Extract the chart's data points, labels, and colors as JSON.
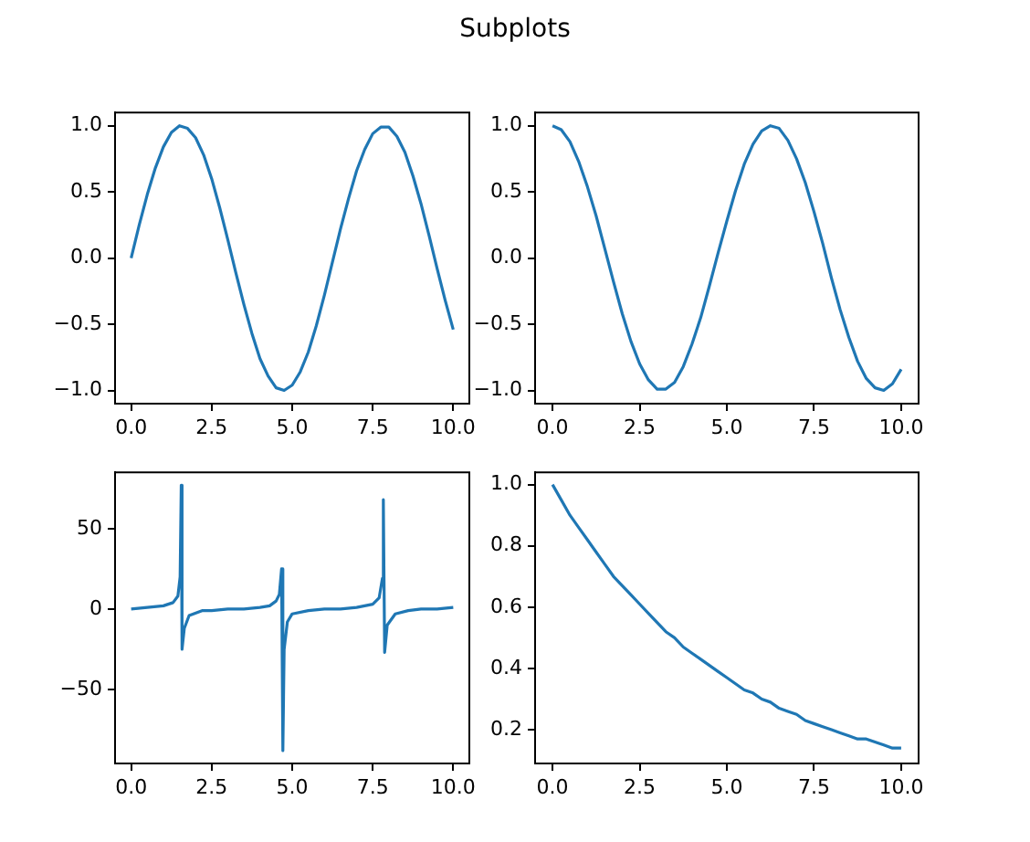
{
  "chart_data": [
    {
      "type": "line",
      "title": "Subplots",
      "x": [
        0,
        0.25,
        0.5,
        0.75,
        1,
        1.25,
        1.5,
        1.75,
        2,
        2.25,
        2.5,
        2.75,
        3,
        3.25,
        3.5,
        3.75,
        4,
        4.25,
        4.5,
        4.75,
        5,
        5.25,
        5.5,
        5.75,
        6,
        6.25,
        6.5,
        6.75,
        7,
        7.25,
        7.5,
        7.75,
        8,
        8.25,
        8.5,
        8.75,
        9,
        9.25,
        9.5,
        9.75,
        10
      ],
      "series": [
        {
          "color": "#1f77b4",
          "values": [
            0,
            0.25,
            0.48,
            0.68,
            0.84,
            0.95,
            1.0,
            0.98,
            0.91,
            0.78,
            0.6,
            0.38,
            0.14,
            -0.11,
            -0.35,
            -0.57,
            -0.76,
            -0.89,
            -0.98,
            -1.0,
            -0.96,
            -0.86,
            -0.71,
            -0.51,
            -0.28,
            -0.03,
            0.22,
            0.45,
            0.66,
            0.82,
            0.94,
            0.99,
            0.99,
            0.92,
            0.8,
            0.62,
            0.41,
            0.17,
            -0.08,
            -0.32,
            -0.54
          ]
        }
      ],
      "xlim": [
        -0.5,
        10.5
      ],
      "xticks": [
        {
          "value": 0,
          "label": "0.0"
        },
        {
          "value": 2.5,
          "label": "2.5"
        },
        {
          "value": 5,
          "label": "5.0"
        },
        {
          "value": 7.5,
          "label": "7.5"
        },
        {
          "value": 10,
          "label": "10.0"
        }
      ],
      "ylim": [
        -1.1,
        1.1
      ],
      "yticks": [
        {
          "value": -1,
          "label": "−1.0"
        },
        {
          "value": -0.5,
          "label": "−0.5"
        },
        {
          "value": 0,
          "label": "0.0"
        },
        {
          "value": 0.5,
          "label": "0.5"
        },
        {
          "value": 1,
          "label": "1.0"
        }
      ]
    },
    {
      "type": "line",
      "x": [
        0,
        0.25,
        0.5,
        0.75,
        1,
        1.25,
        1.5,
        1.75,
        2,
        2.25,
        2.5,
        2.75,
        3,
        3.25,
        3.5,
        3.75,
        4,
        4.25,
        4.5,
        4.75,
        5,
        5.25,
        5.5,
        5.75,
        6,
        6.25,
        6.5,
        6.75,
        7,
        7.25,
        7.5,
        7.75,
        8,
        8.25,
        8.5,
        8.75,
        9,
        9.25,
        9.5,
        9.75,
        10
      ],
      "series": [
        {
          "color": "#1f77b4",
          "values": [
            1,
            0.97,
            0.88,
            0.73,
            0.54,
            0.32,
            0.07,
            -0.18,
            -0.42,
            -0.63,
            -0.8,
            -0.92,
            -0.99,
            -0.99,
            -0.94,
            -0.82,
            -0.65,
            -0.45,
            -0.21,
            0.04,
            0.28,
            0.51,
            0.71,
            0.86,
            0.96,
            1.0,
            0.98,
            0.89,
            0.75,
            0.57,
            0.35,
            0.11,
            -0.15,
            -0.39,
            -0.6,
            -0.78,
            -0.91,
            -0.98,
            -1.0,
            -0.95,
            -0.84
          ]
        }
      ],
      "xlim": [
        -0.5,
        10.5
      ],
      "xticks": [
        {
          "value": 0,
          "label": "0.0"
        },
        {
          "value": 2.5,
          "label": "2.5"
        },
        {
          "value": 5,
          "label": "5.0"
        },
        {
          "value": 7.5,
          "label": "7.5"
        },
        {
          "value": 10,
          "label": "10.0"
        }
      ],
      "ylim": [
        -1.1,
        1.1
      ],
      "yticks": [
        {
          "value": -1,
          "label": "−1.0"
        },
        {
          "value": -0.5,
          "label": "−0.5"
        },
        {
          "value": 0,
          "label": "0.0"
        },
        {
          "value": 0.5,
          "label": "0.5"
        },
        {
          "value": 1,
          "label": "1.0"
        }
      ]
    },
    {
      "type": "line",
      "x": [
        0,
        0.5,
        1,
        1.3,
        1.45,
        1.52,
        1.555,
        1.58,
        1.65,
        1.8,
        2.2,
        2.5,
        3,
        3.5,
        4,
        4.3,
        4.5,
        4.6,
        4.67,
        4.71,
        4.75,
        4.85,
        5,
        5.5,
        6,
        6.5,
        7,
        7.5,
        7.7,
        7.8,
        7.83,
        7.87,
        7.95,
        8.2,
        8.6,
        9,
        9.5,
        10
      ],
      "series": [
        {
          "color": "#1f77b4",
          "values": [
            0,
            1,
            2,
            4,
            8,
            20,
            77,
            -25,
            -12,
            -4,
            -1,
            -1,
            0,
            0,
            1,
            2,
            5,
            9,
            25,
            -88,
            -25,
            -8,
            -3,
            -1,
            0,
            0,
            1,
            3,
            7,
            19,
            68,
            -27,
            -10,
            -3,
            -1,
            0,
            0,
            1
          ]
        }
      ],
      "xlim": [
        -0.5,
        10.5
      ],
      "xticks": [
        {
          "value": 0,
          "label": "0.0"
        },
        {
          "value": 2.5,
          "label": "2.5"
        },
        {
          "value": 5,
          "label": "5.0"
        },
        {
          "value": 7.5,
          "label": "7.5"
        },
        {
          "value": 10,
          "label": "10.0"
        }
      ],
      "ylim": [
        -96,
        85
      ],
      "yticks": [
        {
          "value": -50,
          "label": "−50"
        },
        0,
        50
      ]
    },
    {
      "type": "line",
      "x": [
        0,
        0.25,
        0.5,
        0.75,
        1,
        1.25,
        1.5,
        1.75,
        2,
        2.25,
        2.5,
        2.75,
        3,
        3.25,
        3.5,
        3.75,
        4,
        4.25,
        4.5,
        4.75,
        5,
        5.25,
        5.5,
        5.75,
        6,
        6.25,
        6.5,
        6.75,
        7,
        7.25,
        7.5,
        7.75,
        8,
        8.25,
        8.5,
        8.75,
        9,
        9.25,
        9.5,
        9.75,
        10
      ],
      "series": [
        {
          "color": "#1f77b4",
          "values": [
            1,
            0.95,
            0.9,
            0.86,
            0.82,
            0.78,
            0.74,
            0.7,
            0.67,
            0.64,
            0.61,
            0.58,
            0.55,
            0.52,
            0.5,
            0.47,
            0.45,
            0.43,
            0.41,
            0.39,
            0.37,
            0.35,
            0.33,
            0.32,
            0.3,
            0.29,
            0.27,
            0.26,
            0.25,
            0.23,
            0.22,
            0.21,
            0.2,
            0.19,
            0.18,
            0.17,
            0.17,
            0.16,
            0.15,
            0.14,
            0.14
          ]
        }
      ],
      "xlim": [
        -0.5,
        10.5
      ],
      "xticks": [
        {
          "value": 0,
          "label": "0.0"
        },
        {
          "value": 2.5,
          "label": "2.5"
        },
        {
          "value": 5,
          "label": "5.0"
        },
        {
          "value": 7.5,
          "label": "7.5"
        },
        {
          "value": 10,
          "label": "10.0"
        }
      ],
      "ylim": [
        0.09,
        1.04
      ],
      "yticks": [
        {
          "value": 0.2,
          "label": "0.2"
        },
        {
          "value": 0.4,
          "label": "0.4"
        },
        {
          "value": 0.6,
          "label": "0.6"
        },
        {
          "value": 0.8,
          "label": "0.8"
        },
        {
          "value": 1,
          "label": "1.0"
        }
      ]
    }
  ]
}
